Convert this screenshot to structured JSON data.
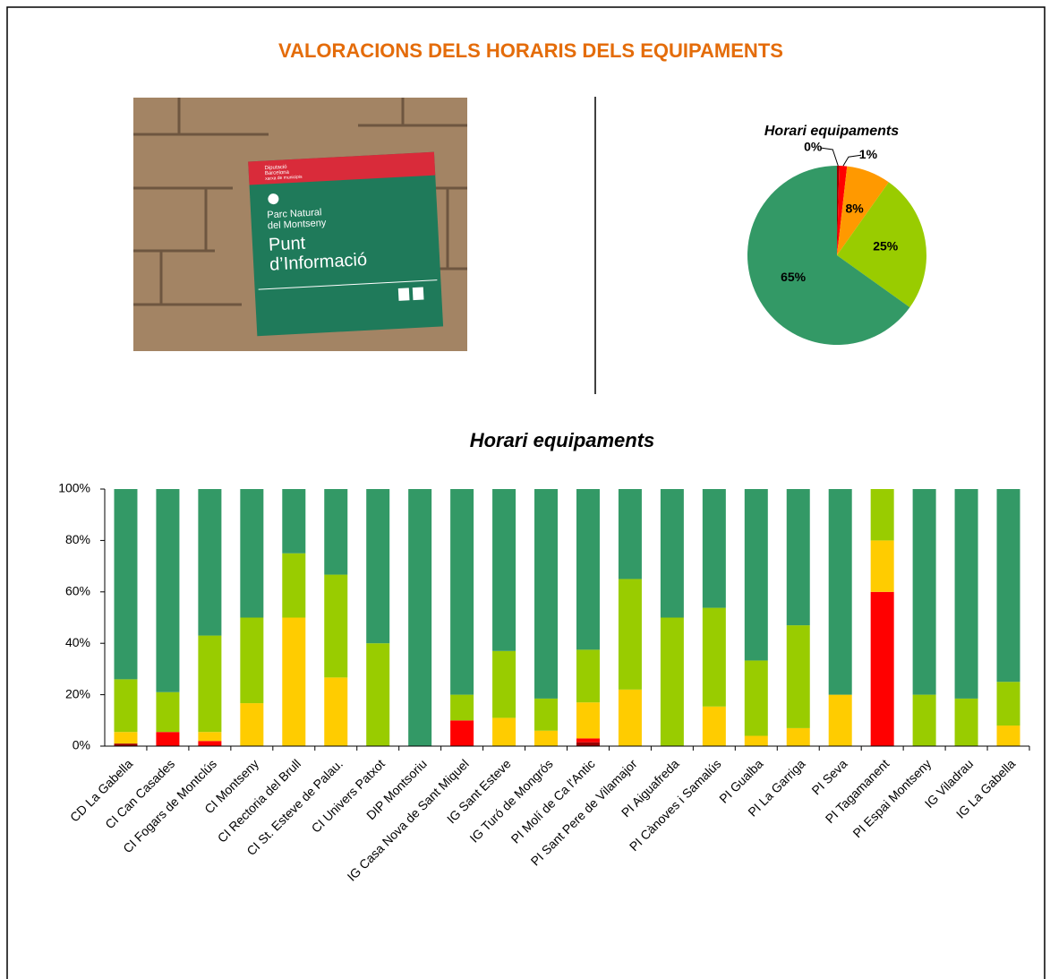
{
  "header": {
    "title": "VALORACIONS DELS HORARIS DELS EQUIPAMENTS"
  },
  "photo": {
    "brand": [
      "Diputació",
      "Barcelona",
      "xarxa de municipis"
    ],
    "park": [
      "Parc Natural",
      "del Montseny"
    ],
    "sign": [
      "Punt",
      "d’Informació"
    ]
  },
  "chart_data": [
    {
      "type": "pie",
      "title": "Horari equipaments",
      "values": [
        0.4,
        1.4,
        8,
        25,
        65
      ],
      "value_labels": [
        "0%",
        "1%",
        "8%",
        "25%",
        "65%"
      ],
      "colors": [
        "#990000",
        "#ff0000",
        "#ff9900",
        "#99cc00",
        "#339966"
      ]
    },
    {
      "type": "stacked_bar",
      "title": "Horari equipaments",
      "categories": [
        "CD La Gabella",
        "CI Can Casades",
        "CI Fogars de Montclús",
        "CI Montseny",
        "CI Rectoria del Brull",
        "CI St. Esteve de Palau.",
        "CI Univers Patxot",
        "DIP Montsoriu",
        "IG Casa Nova de Sant Miquel",
        "IG Sant Esteve",
        "IG Turó de Mongrós",
        "PI Molí de Ca l'Antic",
        "PI Sant Pere de Vilamajor",
        "PI Aiguafreda",
        "PI Cànoves i Samalús",
        "PI Gualba",
        "PI La Garriga",
        "PI Seva",
        "PI Tagamanent",
        "PI Espai Montseny",
        "IG Viladrau",
        "IG La Gabella"
      ],
      "series": [
        {
          "color": "#990000",
          "values": [
            1,
            0,
            0,
            0,
            0,
            0,
            0,
            0,
            0,
            0,
            0,
            1.5,
            0,
            0,
            0,
            0,
            0,
            0,
            0,
            0,
            0,
            0
          ]
        },
        {
          "color": "#ff0000",
          "values": [
            0,
            5.5,
            2,
            0,
            0,
            0,
            0,
            0,
            10,
            0,
            0,
            1.5,
            0,
            0,
            0,
            0,
            0,
            0,
            60,
            0,
            0,
            0
          ]
        },
        {
          "color": "#ffcc00",
          "values": [
            4.5,
            0,
            3.5,
            16.7,
            50,
            26.7,
            0,
            0,
            0,
            11,
            6,
            14,
            22,
            0,
            15.4,
            4,
            7,
            20,
            20,
            0,
            0,
            8
          ]
        },
        {
          "color": "#99cc00",
          "values": [
            20.5,
            15.5,
            37.5,
            33.3,
            25,
            40,
            40,
            0,
            10,
            26,
            12.5,
            20.5,
            43,
            50,
            38.4,
            29.3,
            40,
            0,
            20,
            20,
            18.5,
            17
          ]
        },
        {
          "color": "#339966",
          "values": [
            74,
            79,
            57,
            50,
            25,
            33.3,
            60,
            100,
            80,
            63,
            81.5,
            62.5,
            35,
            50,
            46.2,
            66.7,
            53,
            80,
            0,
            80,
            81.5,
            75
          ]
        }
      ],
      "ylim": [
        0,
        100
      ],
      "yticks": [
        {
          "value": 0,
          "label": "0%"
        },
        {
          "value": 20,
          "label": "20%"
        },
        {
          "value": 40,
          "label": "40%"
        },
        {
          "value": 60,
          "label": "60%"
        },
        {
          "value": 80,
          "label": "80%"
        },
        {
          "value": 100,
          "label": "100%"
        }
      ]
    }
  ]
}
